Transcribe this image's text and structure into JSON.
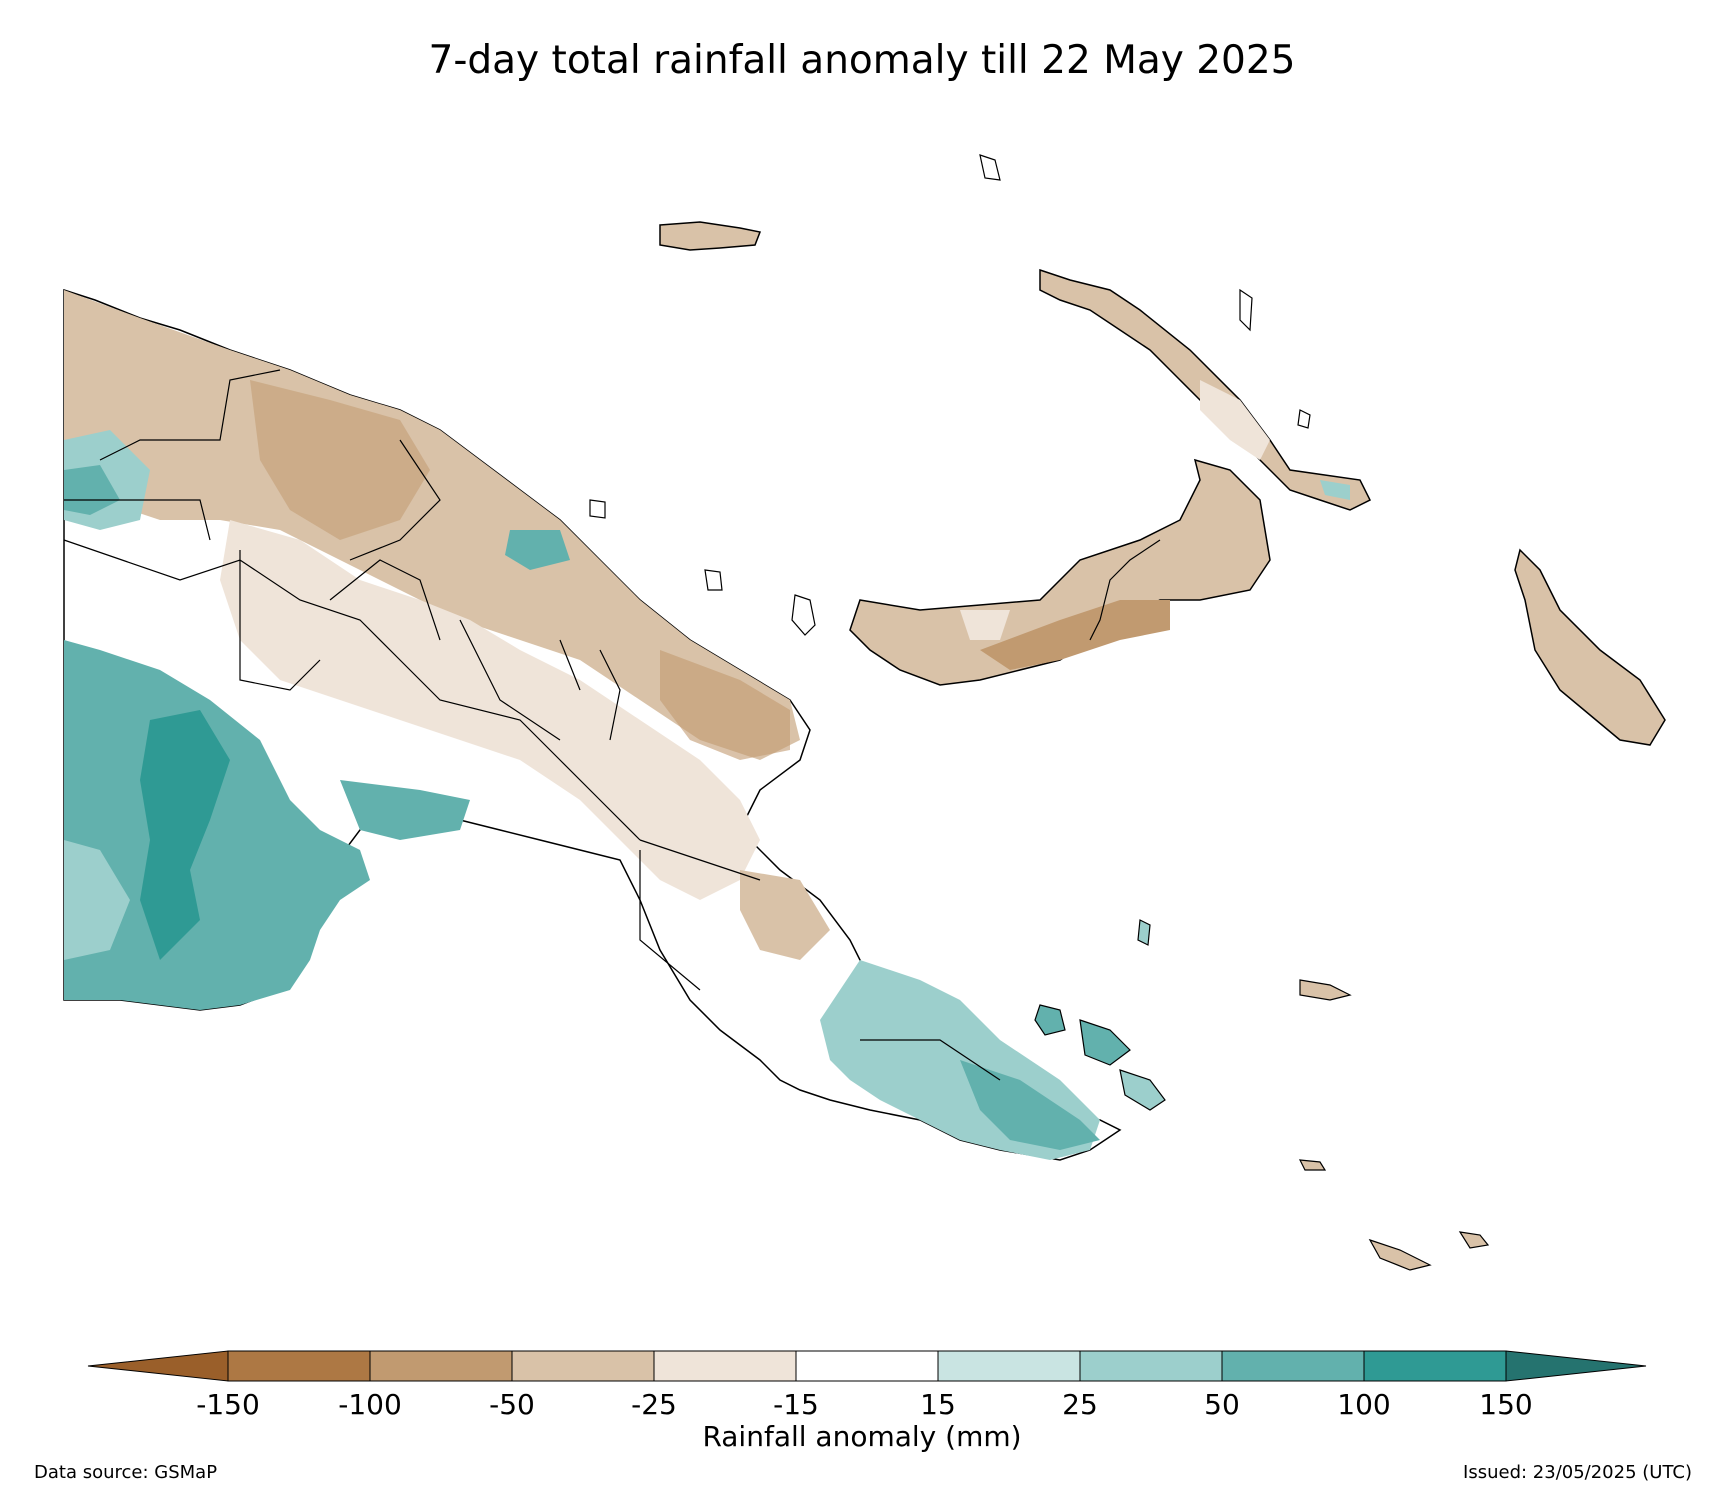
{
  "title": "7-day total rainfall anomaly till 22 May 2025",
  "colorbar": {
    "label": "Rainfall anomaly (mm)",
    "ticks": [
      "-150",
      "-100",
      "-50",
      "-25",
      "-15",
      "15",
      "25",
      "50",
      "100",
      "150"
    ],
    "colors": [
      "#9a5f2a",
      "#ad7844",
      "#c19a70",
      "#d9c2a8",
      "#efe4d9",
      "#ffffff",
      "#c9e4e2",
      "#9ccfcc",
      "#62b1ad",
      "#2f9a94",
      "#25736f"
    ]
  },
  "footer": {
    "source": "Data source: GSMaP",
    "issued": "Issued: 23/05/2025 (UTC)"
  },
  "map": {
    "region": "Papua New Guinea",
    "background": "#ffffff",
    "border_color": "#000000"
  }
}
